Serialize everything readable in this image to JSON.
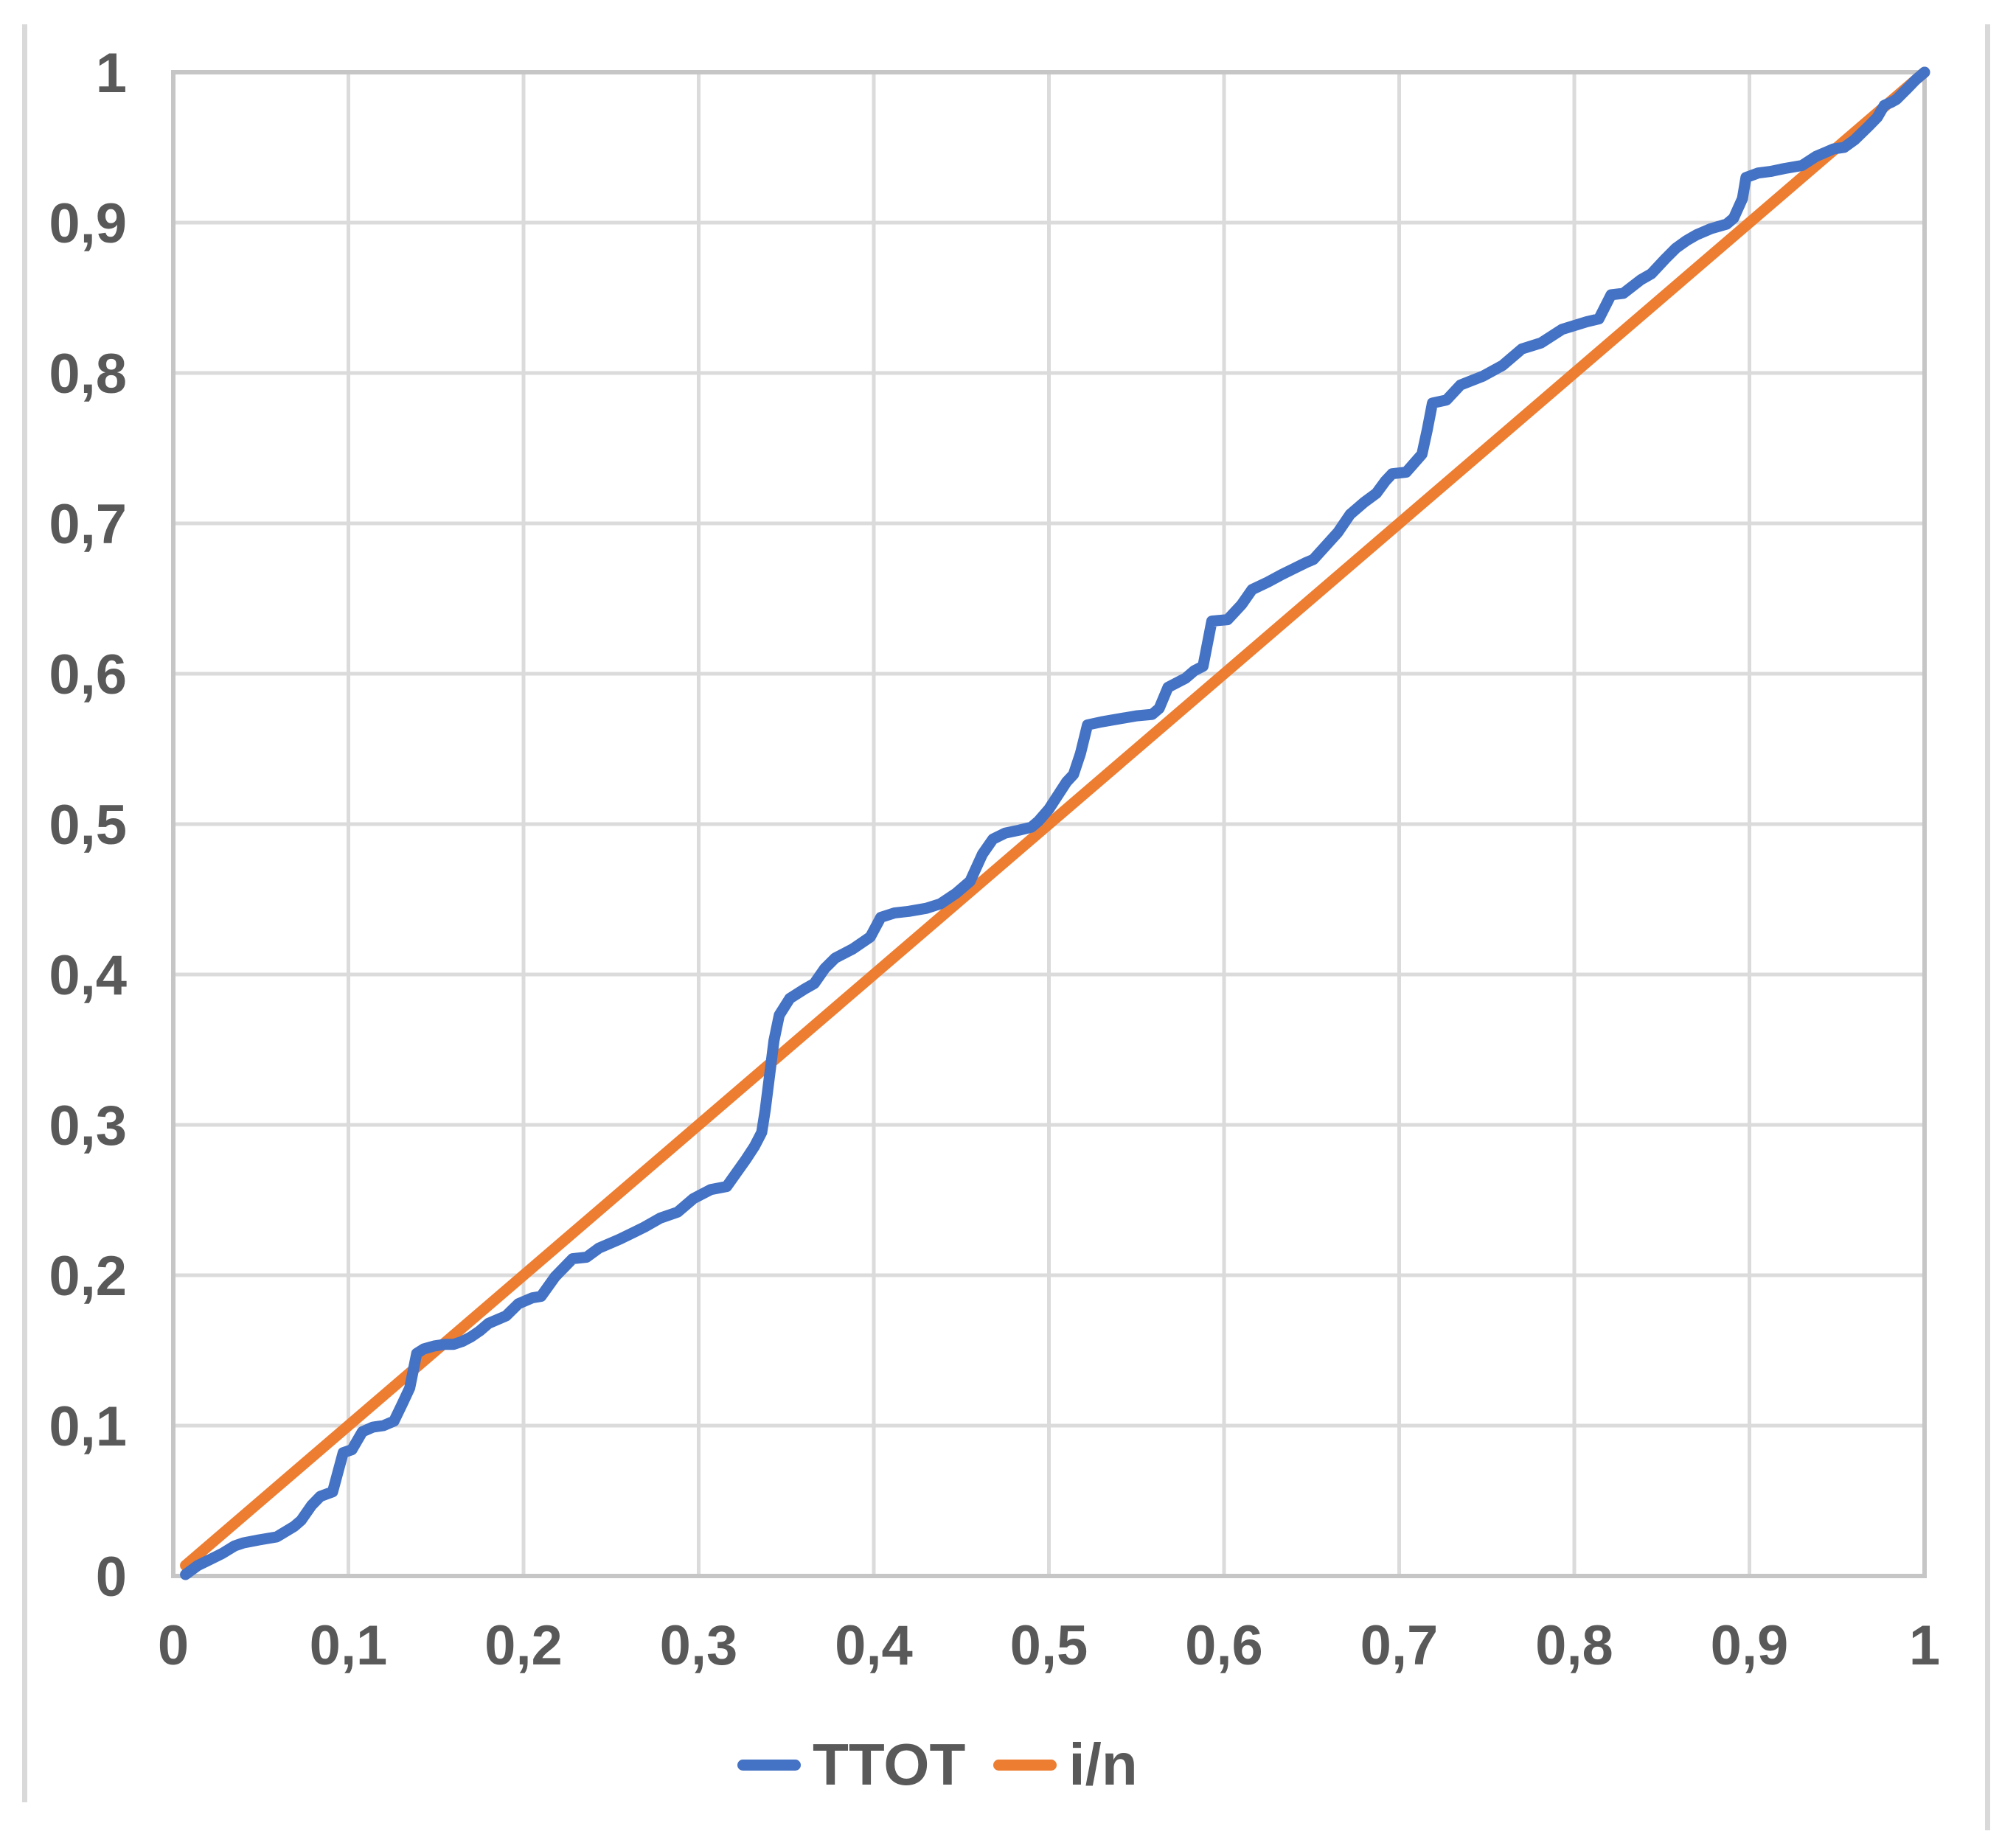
{
  "chart_data": {
    "type": "line",
    "title": "",
    "xlabel": "",
    "ylabel": "",
    "xlim": [
      0,
      1
    ],
    "ylim": [
      0,
      1
    ],
    "grid": true,
    "legend_position": "bottom-center",
    "decimal_separator": ",",
    "x_ticks": {
      "values": [
        0,
        0.1,
        0.2,
        0.3,
        0.4,
        0.5,
        0.6,
        0.7,
        0.8,
        0.9,
        1
      ],
      "labels": [
        "0",
        "0,1",
        "0,2",
        "0,3",
        "0,4",
        "0,5",
        "0,6",
        "0,7",
        "0,8",
        "0,9",
        "1"
      ]
    },
    "y_ticks": {
      "values": [
        0,
        0.1,
        0.2,
        0.3,
        0.4,
        0.5,
        0.6,
        0.7,
        0.8,
        0.9,
        1
      ],
      "labels": [
        "0",
        "0,1",
        "0,2",
        "0,3",
        "0,4",
        "0,5",
        "0,6",
        "0,7",
        "0,8",
        "0,9",
        "1"
      ]
    },
    "series": [
      {
        "name": "TTOT",
        "color": "#4472C4",
        "points": [
          [
            0.007,
            0.001
          ],
          [
            0.014,
            0.007
          ],
          [
            0.021,
            0.011
          ],
          [
            0.028,
            0.015
          ],
          [
            0.035,
            0.02
          ],
          [
            0.04,
            0.022
          ],
          [
            0.049,
            0.024
          ],
          [
            0.059,
            0.026
          ],
          [
            0.069,
            0.033
          ],
          [
            0.073,
            0.037
          ],
          [
            0.079,
            0.047
          ],
          [
            0.084,
            0.053
          ],
          [
            0.091,
            0.056
          ],
          [
            0.097,
            0.082
          ],
          [
            0.102,
            0.084
          ],
          [
            0.105,
            0.09
          ],
          [
            0.108,
            0.096
          ],
          [
            0.114,
            0.099
          ],
          [
            0.12,
            0.1
          ],
          [
            0.126,
            0.103
          ],
          [
            0.131,
            0.115
          ],
          [
            0.135,
            0.125
          ],
          [
            0.139,
            0.148
          ],
          [
            0.143,
            0.151
          ],
          [
            0.149,
            0.153
          ],
          [
            0.155,
            0.154
          ],
          [
            0.16,
            0.154
          ],
          [
            0.165,
            0.156
          ],
          [
            0.17,
            0.159
          ],
          [
            0.175,
            0.163
          ],
          [
            0.18,
            0.168
          ],
          [
            0.19,
            0.173
          ],
          [
            0.197,
            0.181
          ],
          [
            0.205,
            0.185
          ],
          [
            0.21,
            0.186
          ],
          [
            0.218,
            0.199
          ],
          [
            0.228,
            0.211
          ],
          [
            0.236,
            0.212
          ],
          [
            0.243,
            0.218
          ],
          [
            0.251,
            0.222
          ],
          [
            0.255,
            0.224
          ],
          [
            0.262,
            0.228
          ],
          [
            0.269,
            0.232
          ],
          [
            0.278,
            0.238
          ],
          [
            0.288,
            0.242
          ],
          [
            0.297,
            0.251
          ],
          [
            0.307,
            0.257
          ],
          [
            0.316,
            0.259
          ],
          [
            0.327,
            0.277
          ],
          [
            0.332,
            0.286
          ],
          [
            0.336,
            0.295
          ],
          [
            0.338,
            0.31
          ],
          [
            0.343,
            0.356
          ],
          [
            0.346,
            0.373
          ],
          [
            0.352,
            0.384
          ],
          [
            0.36,
            0.39
          ],
          [
            0.366,
            0.394
          ],
          [
            0.372,
            0.404
          ],
          [
            0.378,
            0.411
          ],
          [
            0.388,
            0.417
          ],
          [
            0.398,
            0.425
          ],
          [
            0.404,
            0.438
          ],
          [
            0.412,
            0.441
          ],
          [
            0.42,
            0.442
          ],
          [
            0.43,
            0.444
          ],
          [
            0.438,
            0.447
          ],
          [
            0.447,
            0.454
          ],
          [
            0.455,
            0.462
          ],
          [
            0.462,
            0.48
          ],
          [
            0.468,
            0.49
          ],
          [
            0.475,
            0.494
          ],
          [
            0.483,
            0.496
          ],
          [
            0.49,
            0.498
          ],
          [
            0.494,
            0.502
          ],
          [
            0.5,
            0.51
          ],
          [
            0.51,
            0.528
          ],
          [
            0.514,
            0.533
          ],
          [
            0.518,
            0.547
          ],
          [
            0.522,
            0.566
          ],
          [
            0.53,
            0.568
          ],
          [
            0.54,
            0.57
          ],
          [
            0.55,
            0.572
          ],
          [
            0.559,
            0.573
          ],
          [
            0.563,
            0.577
          ],
          [
            0.568,
            0.591
          ],
          [
            0.578,
            0.597
          ],
          [
            0.583,
            0.602
          ],
          [
            0.588,
            0.605
          ],
          [
            0.593,
            0.635
          ],
          [
            0.602,
            0.636
          ],
          [
            0.61,
            0.646
          ],
          [
            0.616,
            0.656
          ],
          [
            0.625,
            0.661
          ],
          [
            0.633,
            0.666
          ],
          [
            0.64,
            0.67
          ],
          [
            0.647,
            0.674
          ],
          [
            0.651,
            0.676
          ],
          [
            0.658,
            0.685
          ],
          [
            0.665,
            0.694
          ],
          [
            0.672,
            0.706
          ],
          [
            0.68,
            0.714
          ],
          [
            0.687,
            0.72
          ],
          [
            0.692,
            0.728
          ],
          [
            0.696,
            0.733
          ],
          [
            0.704,
            0.734
          ],
          [
            0.713,
            0.746
          ],
          [
            0.716,
            0.762
          ],
          [
            0.719,
            0.78
          ],
          [
            0.727,
            0.782
          ],
          [
            0.735,
            0.792
          ],
          [
            0.748,
            0.798
          ],
          [
            0.759,
            0.805
          ],
          [
            0.77,
            0.816
          ],
          [
            0.781,
            0.82
          ],
          [
            0.793,
            0.829
          ],
          [
            0.807,
            0.834
          ],
          [
            0.814,
            0.836
          ],
          [
            0.821,
            0.852
          ],
          [
            0.828,
            0.853
          ],
          [
            0.838,
            0.862
          ],
          [
            0.844,
            0.866
          ],
          [
            0.852,
            0.876
          ],
          [
            0.858,
            0.883
          ],
          [
            0.864,
            0.888
          ],
          [
            0.87,
            0.892
          ],
          [
            0.878,
            0.896
          ],
          [
            0.887,
            0.899
          ],
          [
            0.891,
            0.903
          ],
          [
            0.896,
            0.916
          ],
          [
            0.898,
            0.93
          ],
          [
            0.905,
            0.933
          ],
          [
            0.912,
            0.934
          ],
          [
            0.92,
            0.936
          ],
          [
            0.93,
            0.938
          ],
          [
            0.938,
            0.944
          ],
          [
            0.944,
            0.947
          ],
          [
            0.948,
            0.949
          ],
          [
            0.954,
            0.95
          ],
          [
            0.96,
            0.955
          ],
          [
            0.968,
            0.964
          ],
          [
            0.973,
            0.97
          ],
          [
            0.977,
            0.978
          ],
          [
            0.981,
            0.98
          ],
          [
            0.984,
            0.982
          ],
          [
            0.99,
            0.989
          ],
          [
            0.995,
            0.995
          ],
          [
            1.0,
            1.0
          ]
        ]
      },
      {
        "name": "i/n",
        "color": "#ED7D31",
        "points": [
          [
            0.007,
            0.007
          ],
          [
            1.0,
            1.0
          ]
        ]
      }
    ]
  },
  "legend": {
    "items": [
      {
        "label": "TTOT"
      },
      {
        "label": "i/n"
      }
    ]
  },
  "colors": {
    "tick_label": "#595959",
    "gridline": "#DBDBDB",
    "plot_border": "#C6C6C6",
    "sheet_border": "#D9D9D9",
    "background": "#FFFFFF"
  }
}
